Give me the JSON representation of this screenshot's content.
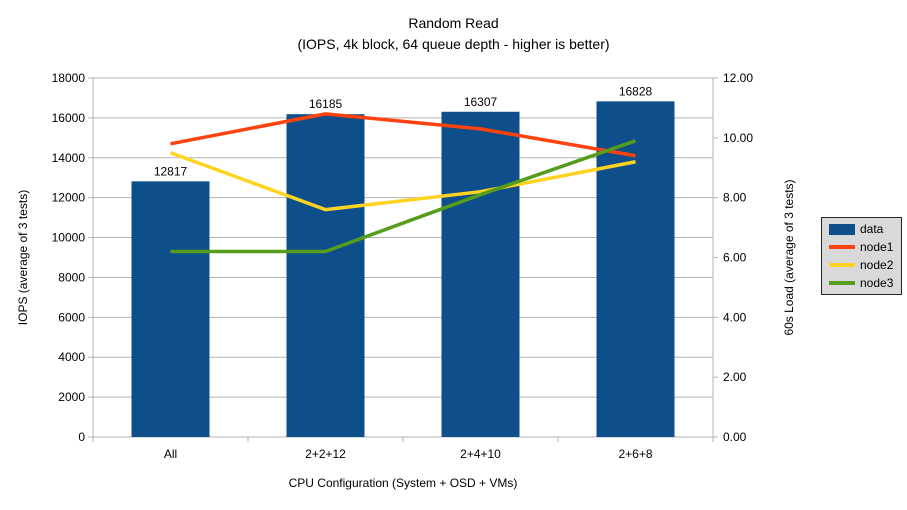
{
  "title": "Random Read",
  "subtitle": "(IOPS, 4k block, 64 queue depth - higher is better)",
  "chart_data": {
    "type": "bar+line",
    "title": "Random Read",
    "subtitle": "(IOPS, 4k block, 64 queue depth - higher is better)",
    "categories": [
      "All",
      "2+2+12",
      "2+4+10",
      "2+6+8"
    ],
    "bar_series": {
      "name": "data",
      "axis": "left",
      "color": "#0d4e8b",
      "values": [
        12817,
        16185,
        16307,
        16828
      ],
      "data_labels": [
        "12817",
        "16185",
        "16307",
        "16828"
      ]
    },
    "line_series": [
      {
        "name": "node1",
        "axis": "right",
        "color": "#ff420e",
        "values": [
          9.8,
          10.8,
          10.3,
          9.4
        ]
      },
      {
        "name": "node2",
        "axis": "right",
        "color": "#ffd320",
        "values": [
          9.5,
          7.6,
          8.2,
          9.2
        ]
      },
      {
        "name": "node3",
        "axis": "right",
        "color": "#579d1c",
        "values": [
          6.2,
          6.2,
          8.1,
          9.9
        ]
      }
    ],
    "left_axis": {
      "title": "IOPS (average of 3 tests)",
      "min": 0,
      "max": 18000,
      "step": 2000
    },
    "right_axis": {
      "title": "60s Load (average of 3 tests)",
      "min": 0,
      "max": 12,
      "step": 2,
      "decimals": 2
    },
    "x_axis": {
      "title": "CPU Configuration (System + OSD + VMs)"
    },
    "legend": {
      "position": "right",
      "entries": [
        "data",
        "node1",
        "node2",
        "node3"
      ]
    },
    "grid": "horizontal",
    "colors": {
      "gridline": "#b3b3b3",
      "axis": "#b3b3b3",
      "text": "#000000",
      "legend_bg": "#d9d9d9",
      "legend_border": "#262626",
      "background": "#ffffff"
    }
  }
}
